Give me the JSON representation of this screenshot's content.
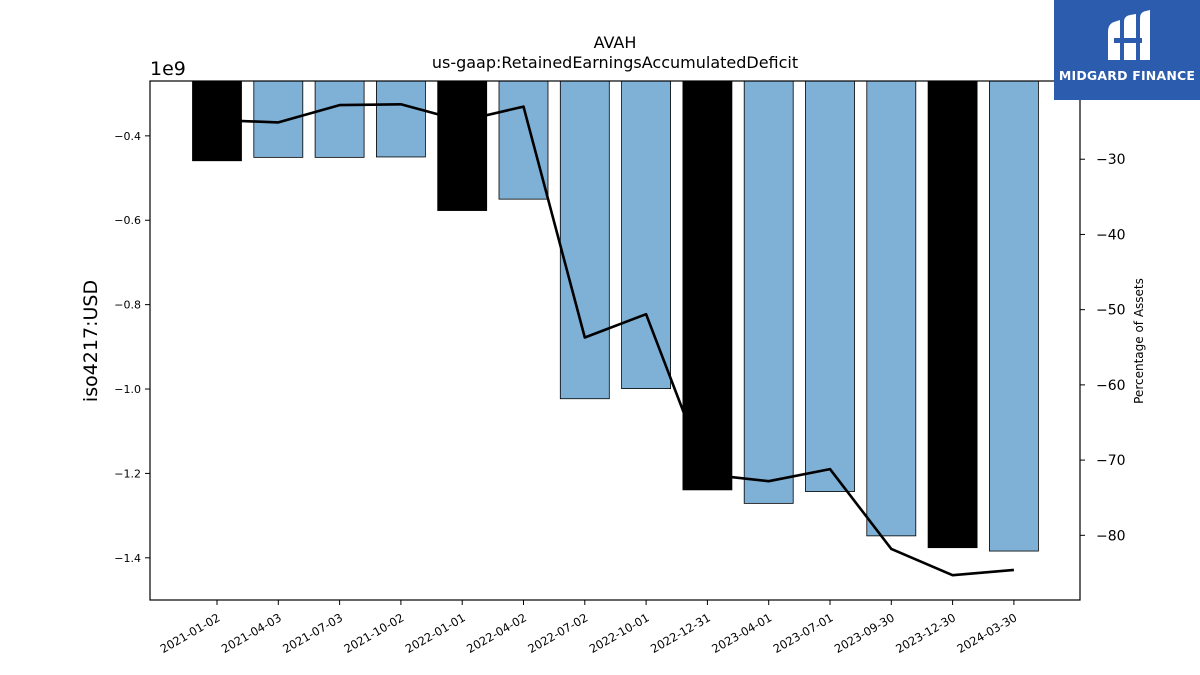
{
  "chart_data": {
    "type": "bar",
    "title": "AVAH",
    "subtitle": "us-gaap:RetainedEarningsAccumulatedDeficit",
    "ylabel": "iso4217:USD",
    "y2label": "Percentage of Assets",
    "offset_label": "1e9",
    "categories": [
      "2021-01-02",
      "2021-04-03",
      "2021-07-03",
      "2021-10-02",
      "2022-01-01",
      "2022-04-02",
      "2022-07-02",
      "2022-10-01",
      "2022-12-31",
      "2023-04-01",
      "2023-07-01",
      "2023-09-30",
      "2023-12-30",
      "2024-03-30"
    ],
    "series": [
      {
        "type": "bar",
        "axis": "left",
        "values": [
          -0.459,
          -0.451,
          -0.451,
          -0.45,
          -0.577,
          -0.55,
          -1.023,
          -0.999,
          -1.239,
          -1.271,
          -1.243,
          -1.348,
          -1.376,
          -1.384
        ],
        "colors": [
          "#000000",
          "#7fb0d5",
          "#7fb0d5",
          "#7fb0d5",
          "#000000",
          "#7fb0d5",
          "#7fb0d5",
          "#7fb0d5",
          "#000000",
          "#7fb0d5",
          "#7fb0d5",
          "#7fb0d5",
          "#000000",
          "#7fb0d5"
        ]
      },
      {
        "type": "line",
        "axis": "right",
        "color": "#000000",
        "values": [
          -24.8,
          -25.1,
          -22.8,
          -22.7,
          -24.9,
          -23.0,
          -53.7,
          -50.6,
          -71.9,
          -72.8,
          -71.2,
          -81.8,
          -85.3,
          -84.6
        ]
      }
    ],
    "ylim": [
      -1.5,
      -0.27
    ],
    "yticks": [
      -0.4,
      -0.6,
      -0.8,
      -1.0,
      -1.2,
      -1.4
    ],
    "ytick_labels": [
      "−0.4",
      "−0.6",
      "−0.8",
      "−1.0",
      "−1.2",
      "−1.4"
    ],
    "y2lim": [
      -88.6,
      -19.6
    ],
    "y2ticks": [
      -30,
      -40,
      -50,
      -60,
      -70,
      -80
    ],
    "y2tick_labels": [
      "−30",
      "−40",
      "−50",
      "−60",
      "−70",
      "−80"
    ],
    "grid": false
  },
  "logo": {
    "text": "MIDGARD FINANCE"
  }
}
